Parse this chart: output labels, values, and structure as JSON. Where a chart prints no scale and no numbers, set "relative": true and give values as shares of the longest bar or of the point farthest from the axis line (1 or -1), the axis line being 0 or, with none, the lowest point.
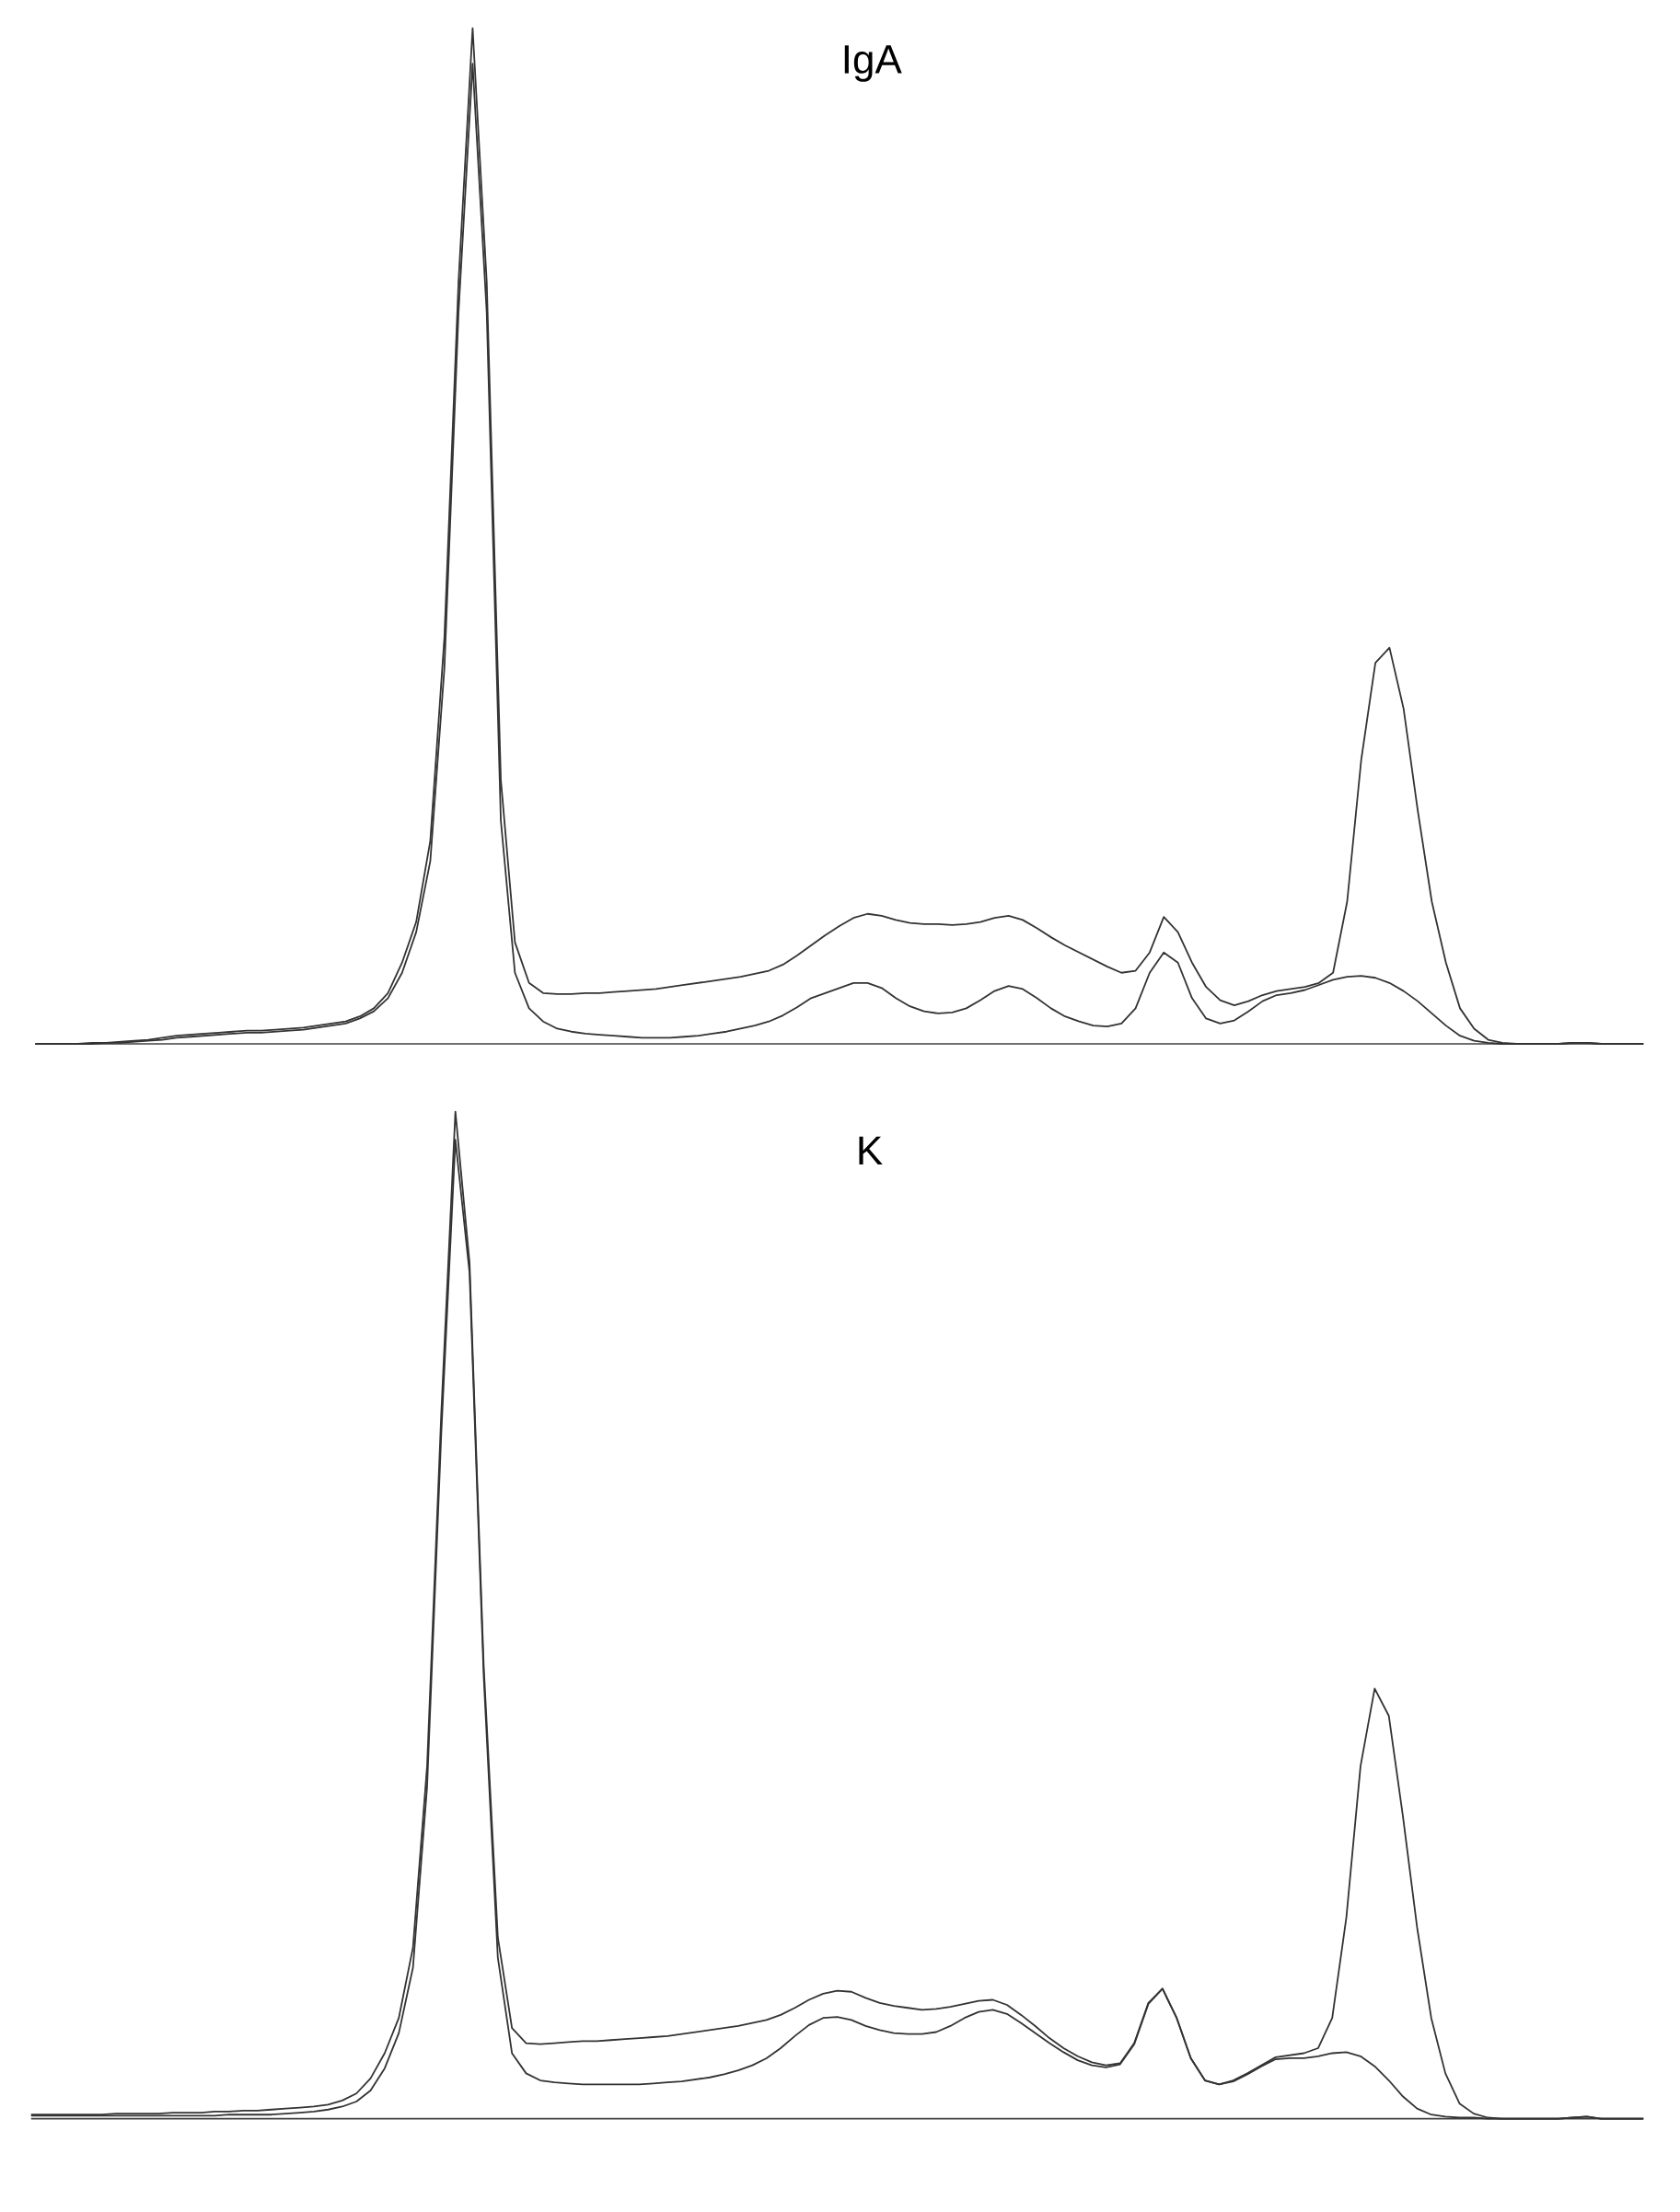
{
  "chart_data": [
    {
      "type": "line",
      "title": "IgA",
      "relative": true,
      "categories": [
        null,
        null,
        null,
        null,
        null,
        null,
        null,
        null,
        null,
        null,
        null,
        null,
        null,
        null,
        null,
        null,
        null,
        null,
        null,
        null,
        null,
        null,
        null,
        null,
        null,
        null,
        null,
        null,
        null,
        null,
        null,
        null,
        null,
        null,
        null,
        null,
        null,
        null,
        null,
        null,
        null,
        null,
        null,
        null,
        null,
        null,
        null,
        null,
        null,
        null,
        null,
        null,
        null,
        null,
        null,
        null,
        null,
        null,
        null,
        null,
        null,
        null,
        null,
        null,
        null,
        null,
        null,
        null,
        null,
        null,
        null,
        null,
        null,
        null,
        null,
        null,
        null,
        null,
        null,
        null,
        null,
        null,
        null,
        null,
        null,
        null,
        null,
        null,
        null,
        null,
        null,
        null,
        null,
        null,
        null,
        null,
        null,
        null,
        null,
        null,
        null,
        null,
        null,
        null,
        null,
        null,
        null,
        null,
        null,
        null,
        null,
        null,
        null,
        null,
        null
      ],
      "series": [
        {
          "color": "#333333",
          "values": [
            0,
            0,
            0,
            0,
            0.001,
            0.001,
            0.002,
            0.003,
            0.004,
            0.006,
            0.008,
            0.009,
            0.01,
            0.011,
            0.012,
            0.013,
            0.013,
            0.014,
            0.015,
            0.016,
            0.018,
            0.02,
            0.022,
            0.027,
            0.035,
            0.05,
            0.08,
            0.12,
            0.2,
            0.4,
            0.75,
            1.0,
            0.75,
            0.26,
            0.1,
            0.06,
            0.05,
            0.049,
            0.049,
            0.05,
            0.05,
            0.051,
            0.052,
            0.053,
            0.054,
            0.056,
            0.058,
            0.06,
            0.062,
            0.064,
            0.066,
            0.069,
            0.072,
            0.078,
            0.087,
            0.097,
            0.107,
            0.116,
            0.124,
            0.128,
            0.126,
            0.122,
            0.119,
            0.118,
            0.118,
            0.117,
            0.118,
            0.12,
            0.124,
            0.126,
            0.122,
            0.114,
            0.105,
            0.097,
            0.09,
            0.083,
            0.076,
            0.07,
            0.072,
            0.09,
            0.125,
            0.11,
            0.08,
            0.056,
            0.043,
            0.038,
            0.042,
            0.048,
            0.052,
            0.054,
            0.056,
            0.06,
            0.07,
            0.14,
            0.28,
            0.375,
            0.39,
            0.33,
            0.23,
            0.14,
            0.08,
            0.035,
            0.015,
            0.004,
            0.001,
            0,
            0,
            0,
            0,
            0.001,
            0.001,
            0,
            0,
            0,
            0
          ]
        },
        {
          "color": "#333333",
          "values": [
            0,
            0,
            0,
            0,
            0,
            0.001,
            0.001,
            0.002,
            0.003,
            0.004,
            0.006,
            0.007,
            0.008,
            0.009,
            0.01,
            0.011,
            0.011,
            0.012,
            0.013,
            0.014,
            0.016,
            0.018,
            0.02,
            0.025,
            0.032,
            0.045,
            0.07,
            0.11,
            0.18,
            0.37,
            0.72,
            0.965,
            0.72,
            0.22,
            0.07,
            0.035,
            0.022,
            0.015,
            0.012,
            0.01,
            0.009,
            0.008,
            0.007,
            0.006,
            0.006,
            0.006,
            0.007,
            0.008,
            0.01,
            0.012,
            0.015,
            0.018,
            0.022,
            0.028,
            0.036,
            0.045,
            0.05,
            0.055,
            0.06,
            0.06,
            0.055,
            0.045,
            0.037,
            0.032,
            0.03,
            0.031,
            0.035,
            0.043,
            0.052,
            0.057,
            0.054,
            0.045,
            0.035,
            0.027,
            0.022,
            0.018,
            0.017,
            0.02,
            0.035,
            0.07,
            0.09,
            0.08,
            0.045,
            0.025,
            0.02,
            0.023,
            0.032,
            0.042,
            0.048,
            0.05,
            0.053,
            0.058,
            0.063,
            0.066,
            0.067,
            0.065,
            0.06,
            0.052,
            0.042,
            0.03,
            0.018,
            0.008,
            0.003,
            0.001,
            0,
            0,
            0,
            0,
            0,
            0.001,
            0.001,
            0,
            0,
            0,
            0
          ]
        }
      ]
    },
    {
      "type": "line",
      "title": "K",
      "relative": true,
      "categories": [
        null,
        null,
        null,
        null,
        null,
        null,
        null,
        null,
        null,
        null,
        null,
        null,
        null,
        null,
        null,
        null,
        null,
        null,
        null,
        null,
        null,
        null,
        null,
        null,
        null,
        null,
        null,
        null,
        null,
        null,
        null,
        null,
        null,
        null,
        null,
        null,
        null,
        null,
        null,
        null,
        null,
        null,
        null,
        null,
        null,
        null,
        null,
        null,
        null,
        null,
        null,
        null,
        null,
        null,
        null,
        null,
        null,
        null,
        null,
        null,
        null,
        null,
        null,
        null,
        null,
        null,
        null,
        null,
        null,
        null,
        null,
        null,
        null,
        null,
        null,
        null,
        null,
        null,
        null,
        null,
        null,
        null,
        null,
        null,
        null,
        null,
        null,
        null,
        null,
        null,
        null,
        null,
        null,
        null,
        null,
        null,
        null,
        null,
        null,
        null,
        null,
        null,
        null,
        null,
        null,
        null,
        null,
        null,
        null,
        null,
        null,
        null,
        null,
        null,
        null
      ],
      "series": [
        {
          "color": "#333333",
          "values": [
            0.004,
            0.004,
            0.004,
            0.004,
            0.004,
            0.004,
            0.005,
            0.005,
            0.005,
            0.005,
            0.006,
            0.006,
            0.006,
            0.007,
            0.007,
            0.008,
            0.008,
            0.009,
            0.01,
            0.011,
            0.012,
            0.014,
            0.018,
            0.025,
            0.04,
            0.065,
            0.1,
            0.17,
            0.35,
            0.7,
            1.0,
            0.85,
            0.45,
            0.18,
            0.09,
            0.075,
            0.074,
            0.075,
            0.076,
            0.077,
            0.077,
            0.078,
            0.079,
            0.08,
            0.081,
            0.082,
            0.084,
            0.086,
            0.088,
            0.09,
            0.092,
            0.095,
            0.098,
            0.103,
            0.11,
            0.118,
            0.124,
            0.127,
            0.126,
            0.12,
            0.115,
            0.112,
            0.11,
            0.108,
            0.109,
            0.111,
            0.114,
            0.117,
            0.118,
            0.113,
            0.103,
            0.092,
            0.08,
            0.07,
            0.062,
            0.056,
            0.053,
            0.055,
            0.075,
            0.115,
            0.129,
            0.1,
            0.06,
            0.038,
            0.034,
            0.038,
            0.045,
            0.053,
            0.061,
            0.063,
            0.065,
            0.07,
            0.1,
            0.2,
            0.35,
            0.427,
            0.4,
            0.3,
            0.19,
            0.1,
            0.045,
            0.015,
            0.005,
            0.001,
            0,
            0,
            0,
            0,
            0,
            0.001,
            0.002,
            0,
            0,
            0,
            0
          ]
        },
        {
          "color": "#333333",
          "values": [
            0.003,
            0.003,
            0.003,
            0.003,
            0.003,
            0.003,
            0.003,
            0.003,
            0.003,
            0.003,
            0.003,
            0.003,
            0.003,
            0.003,
            0.004,
            0.004,
            0.004,
            0.004,
            0.005,
            0.006,
            0.007,
            0.009,
            0.012,
            0.017,
            0.028,
            0.05,
            0.085,
            0.15,
            0.33,
            0.68,
            0.972,
            0.84,
            0.44,
            0.16,
            0.065,
            0.045,
            0.038,
            0.036,
            0.035,
            0.034,
            0.034,
            0.034,
            0.034,
            0.034,
            0.035,
            0.036,
            0.037,
            0.039,
            0.041,
            0.044,
            0.048,
            0.053,
            0.06,
            0.07,
            0.082,
            0.093,
            0.1,
            0.101,
            0.098,
            0.092,
            0.088,
            0.085,
            0.084,
            0.084,
            0.086,
            0.092,
            0.1,
            0.106,
            0.108,
            0.104,
            0.095,
            0.085,
            0.075,
            0.066,
            0.058,
            0.053,
            0.051,
            0.054,
            0.074,
            0.114,
            0.129,
            0.1,
            0.06,
            0.038,
            0.034,
            0.037,
            0.044,
            0.052,
            0.059,
            0.06,
            0.06,
            0.062,
            0.065,
            0.066,
            0.062,
            0.052,
            0.038,
            0.022,
            0.01,
            0.004,
            0.002,
            0.001,
            0.001,
            0,
            0,
            0,
            0,
            0,
            0,
            0.001,
            0.002,
            0,
            0,
            0,
            0
          ]
        }
      ]
    }
  ]
}
